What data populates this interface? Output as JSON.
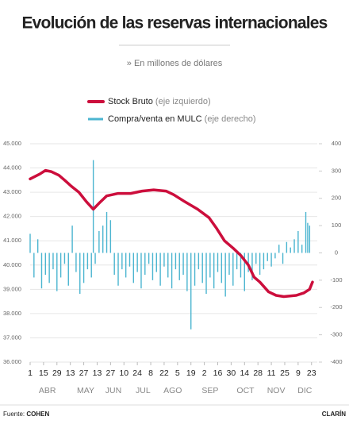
{
  "chart_data": {
    "type": "line_bar",
    "title": "Evolución de las reservas internacionales",
    "subtitle": "» En millones de dólares",
    "source_label": "Fuente:",
    "source": "COHEN",
    "brand": "CLARÍN",
    "xlim": [
      0,
      300
    ],
    "xticks": [
      {
        "value": 0,
        "label": "1"
      },
      {
        "value": 14,
        "label": "15"
      },
      {
        "value": 28,
        "label": "29"
      },
      {
        "value": 42,
        "label": "13"
      },
      {
        "value": 56,
        "label": "27"
      },
      {
        "value": 70,
        "label": "13"
      },
      {
        "value": 84,
        "label": "27"
      },
      {
        "value": 98,
        "label": "10"
      },
      {
        "value": 112,
        "label": "24"
      },
      {
        "value": 126,
        "label": "8"
      },
      {
        "value": 140,
        "label": "22"
      },
      {
        "value": 154,
        "label": "5"
      },
      {
        "value": 168,
        "label": "19"
      },
      {
        "value": 182,
        "label": "2"
      },
      {
        "value": 196,
        "label": "16"
      },
      {
        "value": 210,
        "label": "30"
      },
      {
        "value": 224,
        "label": "14"
      },
      {
        "value": 238,
        "label": "28"
      },
      {
        "value": 252,
        "label": "11"
      },
      {
        "value": 266,
        "label": "25"
      },
      {
        "value": 280,
        "label": "9"
      },
      {
        "value": 294,
        "label": "23"
      }
    ],
    "month_labels": [
      {
        "value": 18,
        "label": "ABR"
      },
      {
        "value": 58,
        "label": "MAY"
      },
      {
        "value": 87,
        "label": "JUN"
      },
      {
        "value": 118,
        "label": "JUL"
      },
      {
        "value": 149,
        "label": "AGO"
      },
      {
        "value": 188,
        "label": "SEP"
      },
      {
        "value": 225,
        "label": "OCT"
      },
      {
        "value": 257,
        "label": "NOV"
      },
      {
        "value": 287,
        "label": "DIC"
      }
    ],
    "ylim": [
      36000,
      45000
    ],
    "yticks": [
      {
        "value": 45000,
        "label": "45.000"
      },
      {
        "value": 44000,
        "label": "44.000"
      },
      {
        "value": 43000,
        "label": "43.000"
      },
      {
        "value": 42000,
        "label": "42.000"
      },
      {
        "value": 41000,
        "label": "41.000"
      },
      {
        "value": 40000,
        "label": "40.000"
      },
      {
        "value": 39000,
        "label": "39.000"
      },
      {
        "value": 38000,
        "label": "38.000"
      },
      {
        "value": 37000,
        "label": "37.000"
      },
      {
        "value": 36000,
        "label": "36.000"
      }
    ],
    "y2lim": [
      -400,
      400
    ],
    "y2ticks": [
      400,
      300,
      200,
      100,
      0,
      -100,
      -200,
      -300,
      -400
    ],
    "grid": true,
    "series": [
      {
        "name": "Stock Bruto",
        "axis_note": "(eje izquierdo)",
        "type": "line",
        "color": "#cc0e3c",
        "x": [
          0,
          10,
          16,
          22,
          30,
          36,
          43,
          51,
          59,
          66,
          72,
          80,
          92,
          105,
          117,
          129,
          142,
          150,
          162,
          175,
          187,
          195,
          203,
          212,
          220,
          228,
          234,
          240,
          249,
          257,
          265,
          278,
          286,
          292,
          295
        ],
        "values": [
          43550,
          43750,
          43900,
          43850,
          43700,
          43500,
          43250,
          43000,
          42600,
          42300,
          42550,
          42850,
          42950,
          42950,
          43050,
          43100,
          43050,
          42900,
          42600,
          42300,
          41950,
          41500,
          41000,
          40700,
          40400,
          40000,
          39500,
          39300,
          38900,
          38750,
          38700,
          38750,
          38850,
          39000,
          39300
        ]
      },
      {
        "name": "Compra/venta en MULC",
        "axis_note": "(eje derecho)",
        "type": "bar",
        "axis": "y2",
        "color": "#4bb5d0",
        "x": [
          0,
          4,
          8,
          12,
          16,
          20,
          24,
          28,
          32,
          36,
          40,
          44,
          48,
          52,
          56,
          60,
          64,
          66,
          68,
          72,
          76,
          80,
          84,
          88,
          92,
          96,
          100,
          104,
          108,
          112,
          116,
          120,
          124,
          128,
          132,
          136,
          140,
          144,
          148,
          152,
          156,
          160,
          164,
          168,
          172,
          176,
          180,
          184,
          188,
          192,
          196,
          200,
          204,
          208,
          212,
          216,
          220,
          224,
          228,
          232,
          236,
          240,
          244,
          248,
          252,
          256,
          260,
          264,
          268,
          272,
          276,
          280,
          284,
          288,
          290,
          292
        ],
        "values": [
          70,
          -90,
          50,
          -130,
          -80,
          -110,
          -60,
          -140,
          -90,
          -40,
          -120,
          100,
          -70,
          -150,
          -110,
          -60,
          -90,
          340,
          -40,
          80,
          100,
          150,
          120,
          -80,
          -120,
          -60,
          -90,
          -50,
          -110,
          -70,
          -130,
          -80,
          -40,
          -100,
          -70,
          -120,
          -50,
          -90,
          -130,
          -60,
          -100,
          -80,
          -140,
          -280,
          -120,
          -60,
          -110,
          -150,
          -90,
          -130,
          -70,
          -110,
          -160,
          -80,
          -120,
          -60,
          -90,
          -140,
          -70,
          -100,
          -40,
          -80,
          -60,
          -30,
          -50,
          -20,
          30,
          -40,
          40,
          20,
          50,
          80,
          30,
          150,
          110,
          100
        ]
      }
    ]
  }
}
